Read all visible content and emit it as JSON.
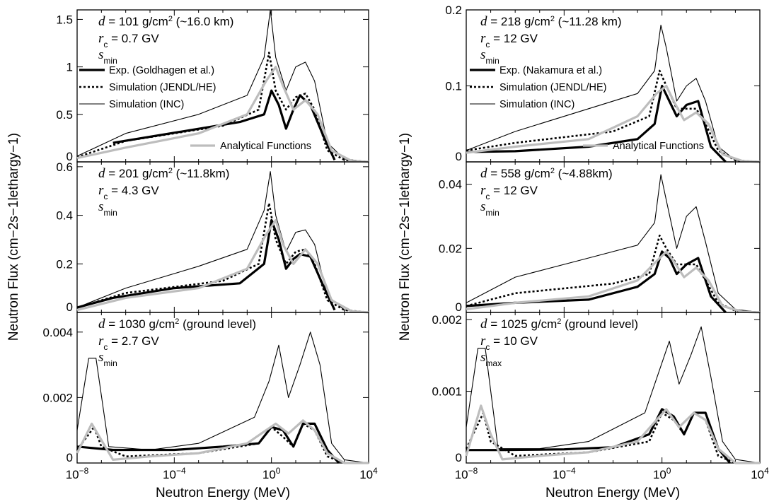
{
  "chart_data": {
    "type": "line",
    "xlabel": "Neutron Energy (MeV)",
    "ylabel": "Neutron Flux (cm−2s−1lethargy−1)",
    "x_scale": "log",
    "xlim": [
      1e-08,
      10000
    ],
    "x_tick_labels": [
      {
        "base": "10",
        "exp": "−8"
      },
      {
        "base": "10",
        "exp": "−4"
      },
      {
        "base": "10",
        "exp": "0"
      },
      {
        "base": "10",
        "exp": "4"
      }
    ],
    "series_names": [
      "Exp. (Goldhagen et al.)",
      "Exp. (Nakamura et al.)",
      "Simulation (JENDL/HE)",
      "Simulation (INC)",
      "Analytical Functions"
    ],
    "panels": [
      {
        "id": "left-top",
        "ylim": [
          0,
          1.6
        ],
        "yticks": [
          "0",
          "0.5",
          "1",
          "1.5"
        ],
        "d_value": "= 101 g/cm",
        "d_note": " (~16.0 km)",
        "rc_value": "= 0.7 GV",
        "s_sub": "min",
        "legend": [
          "Exp. (Goldhagen et al.)",
          "Simulation (JENDL/HE)",
          "Simulation (INC)",
          "Analytical Functions"
        ],
        "series": {
          "exp": {
            "x": [
              3e-07,
              0.05,
              0.5,
              1,
              2,
              4,
              8,
              15,
              40,
              150,
              400
            ],
            "y": [
              0.2,
              0.42,
              0.5,
              0.75,
              0.6,
              0.35,
              0.55,
              0.7,
              0.6,
              0.25,
              0.02
            ]
          },
          "sim": {
            "x": [
              1e-08,
              1e-06,
              0.01,
              0.3,
              0.8,
              1.5,
              4,
              10,
              25,
              60,
              200,
              1000,
              10000
            ],
            "y": [
              0.05,
              0.22,
              0.38,
              0.55,
              1.15,
              0.75,
              0.55,
              0.68,
              0.72,
              0.55,
              0.12,
              0.02,
              0.0
            ]
          },
          "inc": {
            "x": [
              1e-08,
              1e-06,
              0.001,
              0.1,
              0.5,
              0.9,
              1.5,
              4,
              10,
              25,
              60,
              200,
              1000,
              10000
            ],
            "y": [
              0.06,
              0.3,
              0.5,
              0.7,
              1.1,
              1.6,
              1.1,
              0.75,
              1.0,
              1.05,
              0.85,
              0.2,
              0.03,
              0.0
            ]
          },
          "ana": {
            "x": [
              1e-08,
              1e-06,
              0.001,
              0.1,
              0.6,
              1.5,
              3,
              8,
              25,
              80,
              300,
              2000,
              10000
            ],
            "y": [
              0.04,
              0.15,
              0.3,
              0.5,
              0.85,
              1.0,
              0.8,
              0.55,
              0.65,
              0.5,
              0.12,
              0.01,
              0.0
            ]
          }
        }
      },
      {
        "id": "left-mid",
        "ylim": [
          0,
          0.62
        ],
        "yticks": [
          "0",
          "0.2",
          "0.4",
          "0.6"
        ],
        "d_value": "= 201 g/cm",
        "d_note": " (~11.8km)",
        "rc_value": "= 4.3 GV",
        "s_sub": "min",
        "series": {
          "exp": {
            "x": [
              1e-08,
              3e-07,
              0.0001,
              0.05,
              0.5,
              1,
              2,
              4,
              8,
              15,
              40,
              150,
              400
            ],
            "y": [
              0.02,
              0.06,
              0.1,
              0.12,
              0.2,
              0.38,
              0.3,
              0.18,
              0.22,
              0.24,
              0.23,
              0.1,
              0.01
            ]
          },
          "sim": {
            "x": [
              1e-08,
              1e-06,
              0.01,
              0.3,
              0.8,
              1.5,
              4,
              10,
              25,
              60,
              200,
              1000,
              10000
            ],
            "y": [
              0.02,
              0.08,
              0.13,
              0.2,
              0.45,
              0.3,
              0.2,
              0.25,
              0.26,
              0.2,
              0.05,
              0.01,
              0.0
            ]
          },
          "inc": {
            "x": [
              1e-08,
              1e-06,
              0.001,
              0.1,
              0.5,
              0.9,
              1.5,
              4,
              10,
              25,
              60,
              200,
              1000,
              10000
            ],
            "y": [
              0.02,
              0.1,
              0.19,
              0.26,
              0.42,
              0.58,
              0.4,
              0.25,
              0.33,
              0.34,
              0.28,
              0.07,
              0.01,
              0.0
            ]
          },
          "ana": {
            "x": [
              1e-08,
              1e-06,
              0.001,
              0.1,
              0.6,
              1.5,
              3,
              8,
              25,
              80,
              300,
              2000,
              10000
            ],
            "y": [
              0.01,
              0.06,
              0.1,
              0.18,
              0.32,
              0.38,
              0.28,
              0.2,
              0.26,
              0.2,
              0.05,
              0.005,
              0.0
            ]
          }
        }
      },
      {
        "id": "left-bot",
        "ylim": [
          0,
          0.0046
        ],
        "yticks": [
          "0",
          "0.002",
          "0.004"
        ],
        "d_value": "= 1030 g/cm",
        "d_note": " (ground level)",
        "rc_value": "= 2.7 GV",
        "s_sub": "min",
        "series": {
          "exp": {
            "x": [
              1e-08,
              3e-07,
              0.0001,
              0.01,
              0.3,
              1,
              3,
              8,
              20,
              60,
              200,
              600
            ],
            "y": [
              0.0005,
              0.0004,
              0.0004,
              0.0005,
              0.0006,
              0.0011,
              0.001,
              0.0005,
              0.0012,
              0.0012,
              0.0004,
              0.0
            ]
          },
          "sim": {
            "x": [
              1e-08,
              5e-08,
              1e-07,
              1e-06,
              0.001,
              0.3,
              1,
              3,
              8,
              20,
              60,
              200,
              1000,
              10000
            ],
            "y": [
              0.0004,
              0.0011,
              0.0005,
              0.0002,
              0.0003,
              0.0006,
              0.0011,
              0.0008,
              0.0005,
              0.0012,
              0.001,
              0.0002,
              0.0,
              0.0
            ]
          },
          "inc": {
            "x": [
              1e-08,
              3e-08,
              6e-08,
              2e-07,
              1e-05,
              0.001,
              0.2,
              0.8,
              2,
              5,
              15,
              40,
              100,
              300,
              1000,
              10000
            ],
            "y": [
              0.001,
              0.0032,
              0.0032,
              0.0005,
              0.0004,
              0.0006,
              0.0014,
              0.0025,
              0.0036,
              0.002,
              0.003,
              0.004,
              0.003,
              0.0006,
              0.0001,
              0.0
            ]
          },
          "ana": {
            "x": [
              1e-08,
              4e-08,
              1e-07,
              3e-07,
              1e-05,
              0.001,
              0.1,
              0.6,
              1.5,
              5,
              20,
              60,
              200,
              1000,
              10000
            ],
            "y": [
              0.0003,
              0.0012,
              0.0007,
              0.0001,
              0.0002,
              0.0003,
              0.0006,
              0.001,
              0.0012,
              0.0009,
              0.0013,
              0.001,
              0.0003,
              0.0,
              0.0
            ]
          }
        }
      },
      {
        "id": "right-top",
        "ylim": [
          0,
          0.2
        ],
        "yticks": [
          "0",
          "0.1",
          "0.2"
        ],
        "d_value": "= 218 g/cm",
        "d_note": " (~11.28 km)",
        "rc_value": "= 12 GV",
        "s_sub": "min",
        "legend": [
          "Exp. (Nakamura et al.)",
          "Simulation (JENDL/HE)",
          "Simulation (INC)",
          "Analytical Functions"
        ],
        "series": {
          "exp": {
            "x": [
              1e-08,
              1e-06,
              0.001,
              0.1,
              0.5,
              1,
              2,
              4,
              10,
              30,
              100,
              400
            ],
            "y": [
              0.013,
              0.014,
              0.02,
              0.03,
              0.05,
              0.1,
              0.08,
              0.06,
              0.075,
              0.08,
              0.02,
              0.0
            ]
          },
          "sim": {
            "x": [
              1e-08,
              1e-06,
              0.01,
              0.3,
              0.8,
              1.5,
              4,
              10,
              25,
              60,
              200,
              1000,
              10000
            ],
            "y": [
              0.015,
              0.025,
              0.04,
              0.06,
              0.12,
              0.1,
              0.07,
              0.07,
              0.07,
              0.05,
              0.015,
              0.002,
              0.0
            ]
          },
          "inc": {
            "x": [
              1e-08,
              1e-06,
              0.001,
              0.1,
              0.5,
              0.9,
              1.5,
              4,
              10,
              25,
              60,
              200,
              1000,
              10000
            ],
            "y": [
              0.015,
              0.04,
              0.07,
              0.09,
              0.12,
              0.18,
              0.15,
              0.08,
              0.1,
              0.11,
              0.08,
              0.02,
              0.002,
              0.0
            ]
          },
          "ana": {
            "x": [
              1e-08,
              1e-06,
              0.001,
              0.1,
              0.6,
              1.5,
              3,
              8,
              25,
              80,
              300,
              2000,
              10000
            ],
            "y": [
              0.012,
              0.02,
              0.03,
              0.06,
              0.09,
              0.1,
              0.08,
              0.055,
              0.065,
              0.05,
              0.01,
              0.001,
              0.0
            ]
          }
        }
      },
      {
        "id": "right-mid",
        "ylim": [
          0,
          0.047
        ],
        "yticks": [
          "0",
          "0.02",
          "0.04"
        ],
        "d_value": "= 558 g/cm",
        "d_note": " (~4.88km)",
        "rc_value": "= 12 GV",
        "s_sub": "min",
        "series": {
          "exp": {
            "x": [
              1e-08,
              1e-06,
              0.001,
              0.1,
              0.5,
              1,
              2,
              4,
              10,
              30,
              100,
              400
            ],
            "y": [
              0.002,
              0.003,
              0.004,
              0.008,
              0.012,
              0.019,
              0.017,
              0.012,
              0.015,
              0.017,
              0.005,
              0.0
            ]
          },
          "sim": {
            "x": [
              1e-08,
              1e-06,
              0.01,
              0.3,
              0.8,
              1.5,
              4,
              10,
              25,
              60,
              200,
              1000,
              10000
            ],
            "y": [
              0.002,
              0.006,
              0.009,
              0.012,
              0.024,
              0.02,
              0.015,
              0.015,
              0.015,
              0.01,
              0.003,
              0.0005,
              0.0
            ]
          },
          "inc": {
            "x": [
              1e-08,
              1e-06,
              0.001,
              0.1,
              0.5,
              0.9,
              1.5,
              4,
              10,
              25,
              60,
              200,
              1000,
              10000
            ],
            "y": [
              0.003,
              0.011,
              0.017,
              0.021,
              0.028,
              0.043,
              0.035,
              0.02,
              0.03,
              0.033,
              0.022,
              0.006,
              0.001,
              0.0
            ]
          },
          "ana": {
            "x": [
              1e-08,
              1e-06,
              0.001,
              0.1,
              0.6,
              1.5,
              3,
              8,
              25,
              80,
              300,
              2000,
              10000
            ],
            "y": [
              0.001,
              0.003,
              0.005,
              0.01,
              0.016,
              0.019,
              0.016,
              0.011,
              0.014,
              0.01,
              0.002,
              0.0002,
              0.0
            ]
          }
        }
      },
      {
        "id": "right-bot",
        "ylim": [
          0,
          0.0021
        ],
        "yticks": [
          "0",
          "0.001",
          "0.002"
        ],
        "d_value": "= 1025 g/cm",
        "d_note": " (ground level)",
        "rc_value": "= 10 GV",
        "s_sub": "max",
        "series": {
          "exp": {
            "x": [
              1e-08,
              3e-07,
              0.0001,
              0.01,
              0.3,
              1,
              3,
              8,
              20,
              60,
              200,
              600
            ],
            "y": [
              0.00018,
              0.00018,
              0.00019,
              0.00022,
              0.0004,
              0.00075,
              0.00065,
              0.0004,
              0.0007,
              0.0007,
              0.0002,
              0.0
            ]
          },
          "sim": {
            "x": [
              1e-08,
              5e-08,
              1e-07,
              1e-06,
              0.001,
              0.3,
              1,
              3,
              8,
              20,
              60,
              200,
              1000,
              10000
            ],
            "y": [
              0.0002,
              0.0007,
              0.0003,
              0.0001,
              0.00015,
              0.0003,
              0.0007,
              0.0006,
              0.0004,
              0.0007,
              0.0006,
              0.0001,
              0.0,
              0.0
            ]
          },
          "inc": {
            "x": [
              1e-08,
              3e-08,
              6e-08,
              2e-07,
              1e-05,
              0.001,
              0.2,
              0.8,
              2,
              5,
              15,
              40,
              100,
              300,
              1000,
              10000
            ],
            "y": [
              0.0005,
              0.0016,
              0.0016,
              0.0002,
              0.0002,
              0.0003,
              0.0007,
              0.0013,
              0.0017,
              0.0011,
              0.0015,
              0.0019,
              0.0012,
              0.0003,
              5e-05,
              0.0
            ]
          },
          "ana": {
            "x": [
              1e-08,
              4e-08,
              1e-07,
              3e-07,
              1e-05,
              0.001,
              0.1,
              0.6,
              1.5,
              5,
              20,
              60,
              200,
              1000,
              10000
            ],
            "y": [
              0.0001,
              0.0008,
              0.0004,
              5e-05,
              0.0001,
              0.00015,
              0.0003,
              0.0006,
              0.00075,
              0.0005,
              0.0007,
              0.0006,
              0.0002,
              0.0,
              0.0
            ]
          }
        }
      }
    ]
  }
}
